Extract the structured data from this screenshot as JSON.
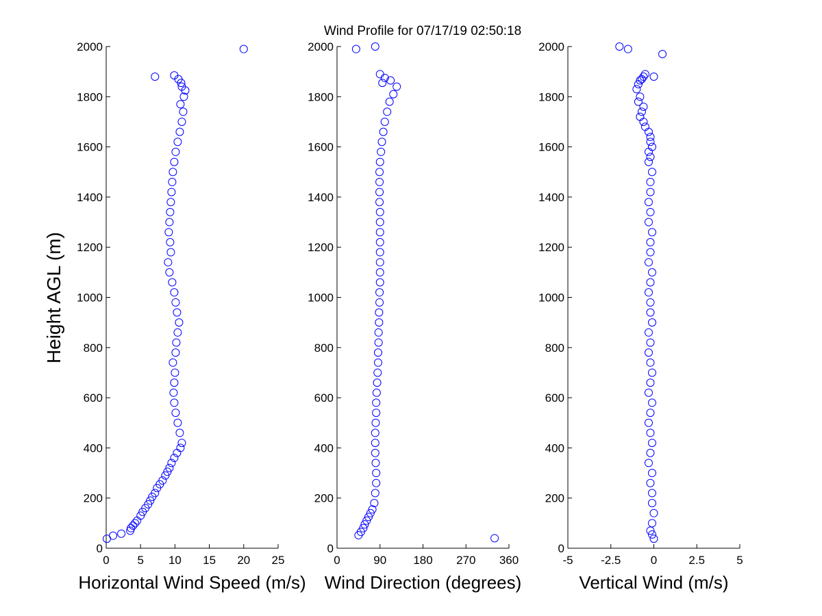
{
  "figure": {
    "title": "Wind Profile for  07/17/19 02:50:18",
    "ylabel": "Height AGL (m)",
    "marker_color": "#0000ff",
    "marker_style": "open-circle"
  },
  "chart_data": [
    {
      "type": "scatter",
      "xlabel": "Horizontal Wind Speed (m/s)",
      "ylabel": "Height AGL (m)",
      "xlim": [
        0,
        25
      ],
      "ylim": [
        0,
        2000
      ],
      "xticks": [
        "0",
        "5",
        "10",
        "15",
        "20",
        "25"
      ],
      "yticks": [
        "0",
        "200",
        "400",
        "600",
        "800",
        "1000",
        "1200",
        "1400",
        "1600",
        "1800",
        "2000"
      ],
      "grid": false,
      "series": [
        {
          "x": [
            0.1,
            1.0,
            2.2,
            3.5,
            3.6,
            3.9,
            4.2,
            4.5,
            5.0,
            5.3,
            5.7,
            6.1,
            6.4,
            6.7,
            7.1,
            7.4,
            7.8,
            8.2,
            8.6,
            8.9,
            9.2,
            9.5,
            9.9,
            10.3,
            10.8,
            11.0,
            10.7,
            10.4,
            10.1,
            9.9,
            9.8,
            9.9,
            10.0,
            9.7,
            10.1,
            10.2,
            10.4,
            10.6,
            10.3,
            10.1,
            9.9,
            9.6,
            9.2,
            9.0,
            9.4,
            9.3,
            9.1,
            9.2,
            9.3,
            9.4,
            9.5,
            9.6,
            9.7,
            9.9,
            10.1,
            10.4,
            10.7,
            11.0,
            11.2,
            10.8,
            11.3,
            11.5,
            11.0,
            10.9,
            10.5,
            9.9,
            7.1,
            20.0
          ],
          "y": [
            38,
            50,
            58,
            70,
            80,
            90,
            100,
            110,
            130,
            145,
            160,
            175,
            190,
            205,
            220,
            240,
            255,
            270,
            290,
            305,
            320,
            340,
            360,
            380,
            400,
            420,
            460,
            500,
            540,
            580,
            620,
            660,
            700,
            740,
            780,
            820,
            860,
            900,
            940,
            980,
            1020,
            1060,
            1100,
            1140,
            1180,
            1220,
            1260,
            1300,
            1340,
            1380,
            1420,
            1460,
            1500,
            1540,
            1580,
            1620,
            1660,
            1700,
            1740,
            1770,
            1800,
            1825,
            1840,
            1855,
            1870,
            1885,
            1880,
            1990
          ]
        }
      ]
    },
    {
      "type": "scatter",
      "xlabel": "Wind Direction (degrees)",
      "xlim": [
        0,
        360
      ],
      "ylim": [
        0,
        2000
      ],
      "xticks": [
        "0",
        "90",
        "180",
        "270",
        "360"
      ],
      "yticks": [
        "0",
        "200",
        "400",
        "600",
        "800",
        "1000",
        "1200",
        "1400",
        "1600",
        "1800",
        "2000"
      ],
      "grid": false,
      "series": [
        {
          "x": [
            330,
            45,
            50,
            55,
            58,
            62,
            66,
            70,
            74,
            78,
            80,
            82,
            82,
            81,
            80,
            80,
            80,
            81,
            82,
            82,
            83,
            84,
            85,
            86,
            86,
            87,
            87,
            88,
            88,
            89,
            89,
            90,
            90,
            90,
            90,
            90,
            90,
            90,
            90,
            89,
            89,
            89,
            89,
            90,
            92,
            94,
            97,
            100,
            105,
            110,
            118,
            125,
            112,
            100,
            95,
            90,
            40,
            80
          ],
          "y": [
            40,
            52,
            65,
            80,
            95,
            110,
            125,
            140,
            155,
            180,
            220,
            260,
            300,
            340,
            380,
            420,
            460,
            500,
            540,
            580,
            620,
            660,
            700,
            740,
            780,
            820,
            860,
            900,
            940,
            980,
            1020,
            1060,
            1100,
            1140,
            1180,
            1220,
            1260,
            1300,
            1340,
            1380,
            1420,
            1460,
            1500,
            1540,
            1580,
            1620,
            1660,
            1700,
            1740,
            1780,
            1810,
            1840,
            1865,
            1875,
            1855,
            1890,
            1990,
            2000
          ]
        }
      ]
    },
    {
      "type": "scatter",
      "xlabel": "Vertical Wind (m/s)",
      "xlim": [
        -5,
        5
      ],
      "ylim": [
        0,
        2000
      ],
      "xticks": [
        "-5",
        "-2.5",
        "0",
        "2.5",
        "5"
      ],
      "yticks": [
        "0",
        "200",
        "400",
        "600",
        "800",
        "1000",
        "1200",
        "1400",
        "1600",
        "1800",
        "2000"
      ],
      "grid": false,
      "series": [
        {
          "x": [
            0.0,
            -0.1,
            -0.2,
            -0.1,
            0.0,
            -0.1,
            -0.1,
            -0.2,
            -0.1,
            -0.3,
            -0.2,
            -0.1,
            -0.2,
            -0.3,
            -0.2,
            -0.1,
            -0.3,
            -0.2,
            -0.1,
            -0.2,
            -0.3,
            -0.2,
            -0.3,
            -0.1,
            -0.2,
            -0.2,
            -0.3,
            -0.2,
            -0.1,
            -0.3,
            -0.2,
            -0.2,
            -0.1,
            -0.3,
            -0.2,
            -0.3,
            -0.2,
            -0.2,
            -0.1,
            -0.3,
            -0.2,
            -0.3,
            -0.1,
            -0.2,
            -0.2,
            -0.3,
            -0.5,
            -0.6,
            -0.8,
            -0.7,
            -0.6,
            -0.9,
            -0.8,
            -1.0,
            -0.9,
            -0.8,
            -0.6,
            -0.7,
            0.0,
            -0.5,
            0.5,
            -1.5,
            -2.0
          ],
          "y": [
            38,
            55,
            70,
            100,
            140,
            180,
            220,
            260,
            300,
            340,
            380,
            420,
            460,
            500,
            540,
            580,
            620,
            660,
            700,
            740,
            780,
            820,
            860,
            900,
            940,
            980,
            1020,
            1060,
            1100,
            1140,
            1180,
            1220,
            1260,
            1300,
            1340,
            1380,
            1420,
            1460,
            1500,
            1540,
            1560,
            1580,
            1600,
            1620,
            1640,
            1660,
            1680,
            1700,
            1720,
            1740,
            1760,
            1780,
            1800,
            1830,
            1850,
            1865,
            1880,
            1870,
            1880,
            1890,
            1970,
            1990,
            2000
          ]
        }
      ]
    }
  ]
}
